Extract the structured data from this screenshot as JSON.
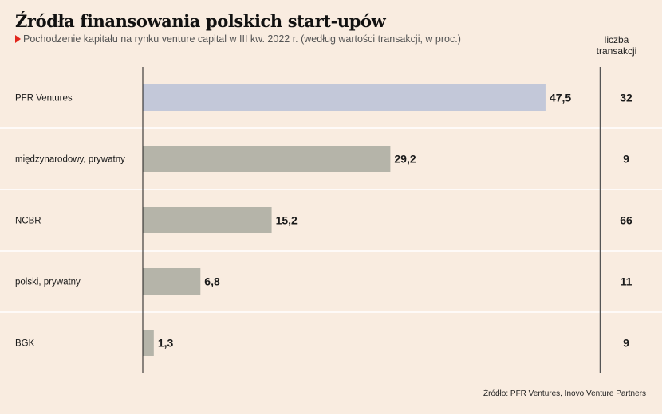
{
  "title": "Źródła finansowania polskich start-upów",
  "subtitle": "Pochodzenie kapitału na rynku venture capital w III kw. 2022 r. (według wartości transakcji, w proc.)",
  "count_header": [
    "liczba",
    "transakcji"
  ],
  "source": "Źródło: PFR Ventures, Inovo Venture Partners",
  "colors": {
    "background": "#f9ece0",
    "highlight_bar": "#c3c8d9",
    "bar": "#b5b4a9",
    "subtitle_marker": "#e1251b",
    "axis_line": "#1a1a1a",
    "row_separator": "#ffffff"
  },
  "chart_data": {
    "type": "bar",
    "orientation": "horizontal",
    "categories": [
      "PFR Ventures",
      "międzynarodowy, prywatny",
      "NCBR",
      "polski, prywatny",
      "BGK"
    ],
    "values": [
      47.5,
      29.2,
      15.2,
      6.8,
      1.3
    ],
    "value_labels": [
      "47,5",
      "29,2",
      "15,2",
      "6,8",
      "1,3"
    ],
    "transaction_counts": [
      "32",
      "9",
      "66",
      "11",
      "9"
    ],
    "highlighted_category": "PFR Ventures",
    "title": "Źródła finansowania polskich start-upów",
    "xlim": [
      0,
      50
    ],
    "grid": false
  }
}
